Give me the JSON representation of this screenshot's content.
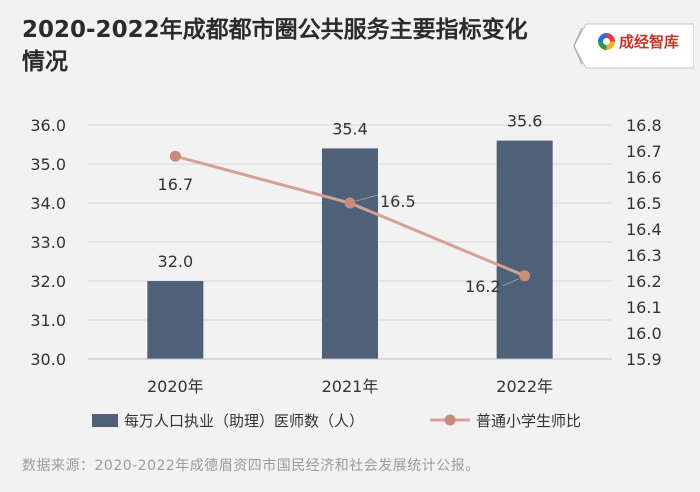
{
  "title": "2020-2022年成都都市圈公共服务主要指标变化情况",
  "brand": {
    "name": "成经智库",
    "logo_icon": "colorful-ring-logo-icon"
  },
  "source": "数据来源：2020-2022年成德眉资四市国民经济和社会发展统计公报。",
  "colors": {
    "bar": "#4f6079",
    "line": "#d4a292",
    "marker": "#c98c7a",
    "grid": "#d6d6d6",
    "text": "#333333",
    "background": "#f2f2f2"
  },
  "chart_data": {
    "type": "bar",
    "categories": [
      "2020年",
      "2021年",
      "2022年"
    ],
    "series": [
      {
        "name": "每万人口执业（助理）医师数（人）",
        "type": "bar",
        "axis": "left",
        "values": [
          32.0,
          35.4,
          35.6
        ],
        "labels": [
          "32.0",
          "35.4",
          "35.6"
        ]
      },
      {
        "name": "普通小学生师比",
        "type": "line",
        "axis": "right",
        "values": [
          16.68,
          16.5,
          16.22
        ],
        "labels": [
          "16.7",
          "16.5",
          "16.2"
        ]
      }
    ],
    "y_left": {
      "min": 30.0,
      "max": 36.0,
      "ticks": [
        "30.0",
        "31.0",
        "32.0",
        "33.0",
        "34.0",
        "35.0",
        "36.0"
      ]
    },
    "y_right": {
      "min": 15.9,
      "max": 16.8,
      "ticks": [
        "15.9",
        "16.0",
        "16.1",
        "16.2",
        "16.3",
        "16.4",
        "16.5",
        "16.6",
        "16.7",
        "16.8"
      ]
    },
    "grid": true,
    "legend": "bottom"
  }
}
